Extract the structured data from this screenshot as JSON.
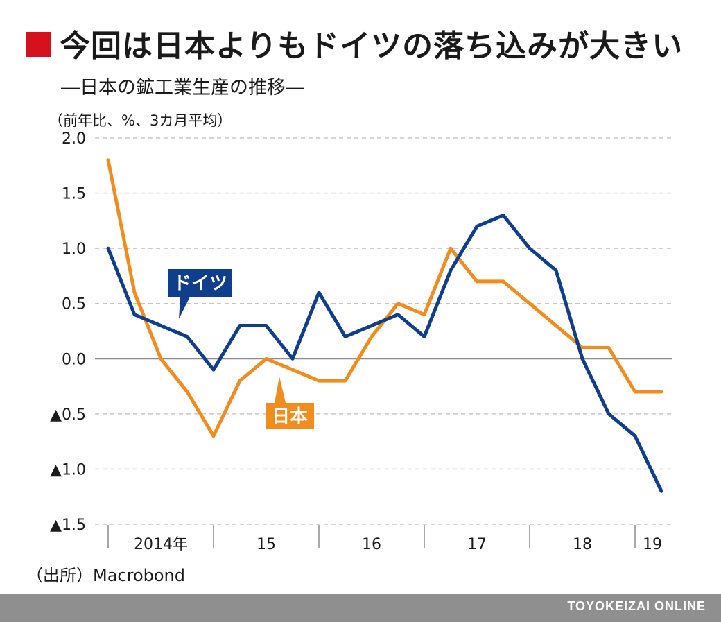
{
  "title": "今回は日本よりもドイツの落ち込みが大きい",
  "subtitle": "―日本の鉱工業生産の推移―",
  "unit_label": "（前年比、%、3カ月平均）",
  "source": "（出所）Macrobond",
  "footer": "TOYOKEIZAI ONLINE",
  "colors": {
    "title_mark": "#d7101e",
    "germany": "#0f3e8c",
    "japan": "#f28c1e",
    "grid": "#bdbdbd",
    "zero_line": "#8c8c8c",
    "footer_bg": "#8f8f8f"
  },
  "chart_data": {
    "type": "line",
    "title": "―日本の鉱工業生産の推移―",
    "ylabel": "（前年比、%、3カ月平均）",
    "ylim": [
      -1.5,
      2.0
    ],
    "y_ticks": [
      {
        "value": 2.0,
        "label": "2.0"
      },
      {
        "value": 1.5,
        "label": "1.5"
      },
      {
        "value": 1.0,
        "label": "1.0"
      },
      {
        "value": 0.5,
        "label": "0.5"
      },
      {
        "value": 0.0,
        "label": "0.0"
      },
      {
        "value": -0.5,
        "label": "▲0.5"
      },
      {
        "value": -1.0,
        "label": "▲1.0"
      },
      {
        "value": -1.5,
        "label": "▲1.5"
      }
    ],
    "x_periods": [
      "2014Q1",
      "2014Q2",
      "2014Q3",
      "2014Q4",
      "2015Q1",
      "2015Q2",
      "2015Q3",
      "2015Q4",
      "2016Q1",
      "2016Q2",
      "2016Q3",
      "2016Q4",
      "2017Q1",
      "2017Q2",
      "2017Q3",
      "2017Q4",
      "2018Q1",
      "2018Q2",
      "2018Q3",
      "2018Q4",
      "2019Q1",
      "2019Q2"
    ],
    "year_labels": [
      {
        "label": "2014年",
        "start": 0,
        "end": 4
      },
      {
        "label": "15",
        "start": 4,
        "end": 8
      },
      {
        "label": "16",
        "start": 8,
        "end": 12
      },
      {
        "label": "17",
        "start": 12,
        "end": 16
      },
      {
        "label": "18",
        "start": 16,
        "end": 20
      },
      {
        "label": "19",
        "start": 20,
        "end": 22
      }
    ],
    "series": [
      {
        "name": "ドイツ",
        "color": "#0f3e8c",
        "values": [
          1.0,
          0.4,
          0.3,
          0.2,
          -0.1,
          0.3,
          0.3,
          0.0,
          0.6,
          0.2,
          0.3,
          0.4,
          0.2,
          0.8,
          1.2,
          1.3,
          1.0,
          0.8,
          0.0,
          -0.5,
          -0.7,
          -1.2
        ]
      },
      {
        "name": "日本",
        "color": "#f28c1e",
        "values": [
          1.8,
          0.6,
          0.0,
          -0.3,
          -0.7,
          -0.2,
          0.0,
          -0.1,
          -0.2,
          -0.2,
          0.2,
          0.5,
          0.4,
          1.0,
          0.7,
          0.7,
          0.5,
          0.3,
          0.1,
          0.1,
          -0.3,
          -0.3
        ]
      }
    ],
    "grid": true,
    "grid_style": "dashed horizontal",
    "legend": "inline callout labels"
  }
}
